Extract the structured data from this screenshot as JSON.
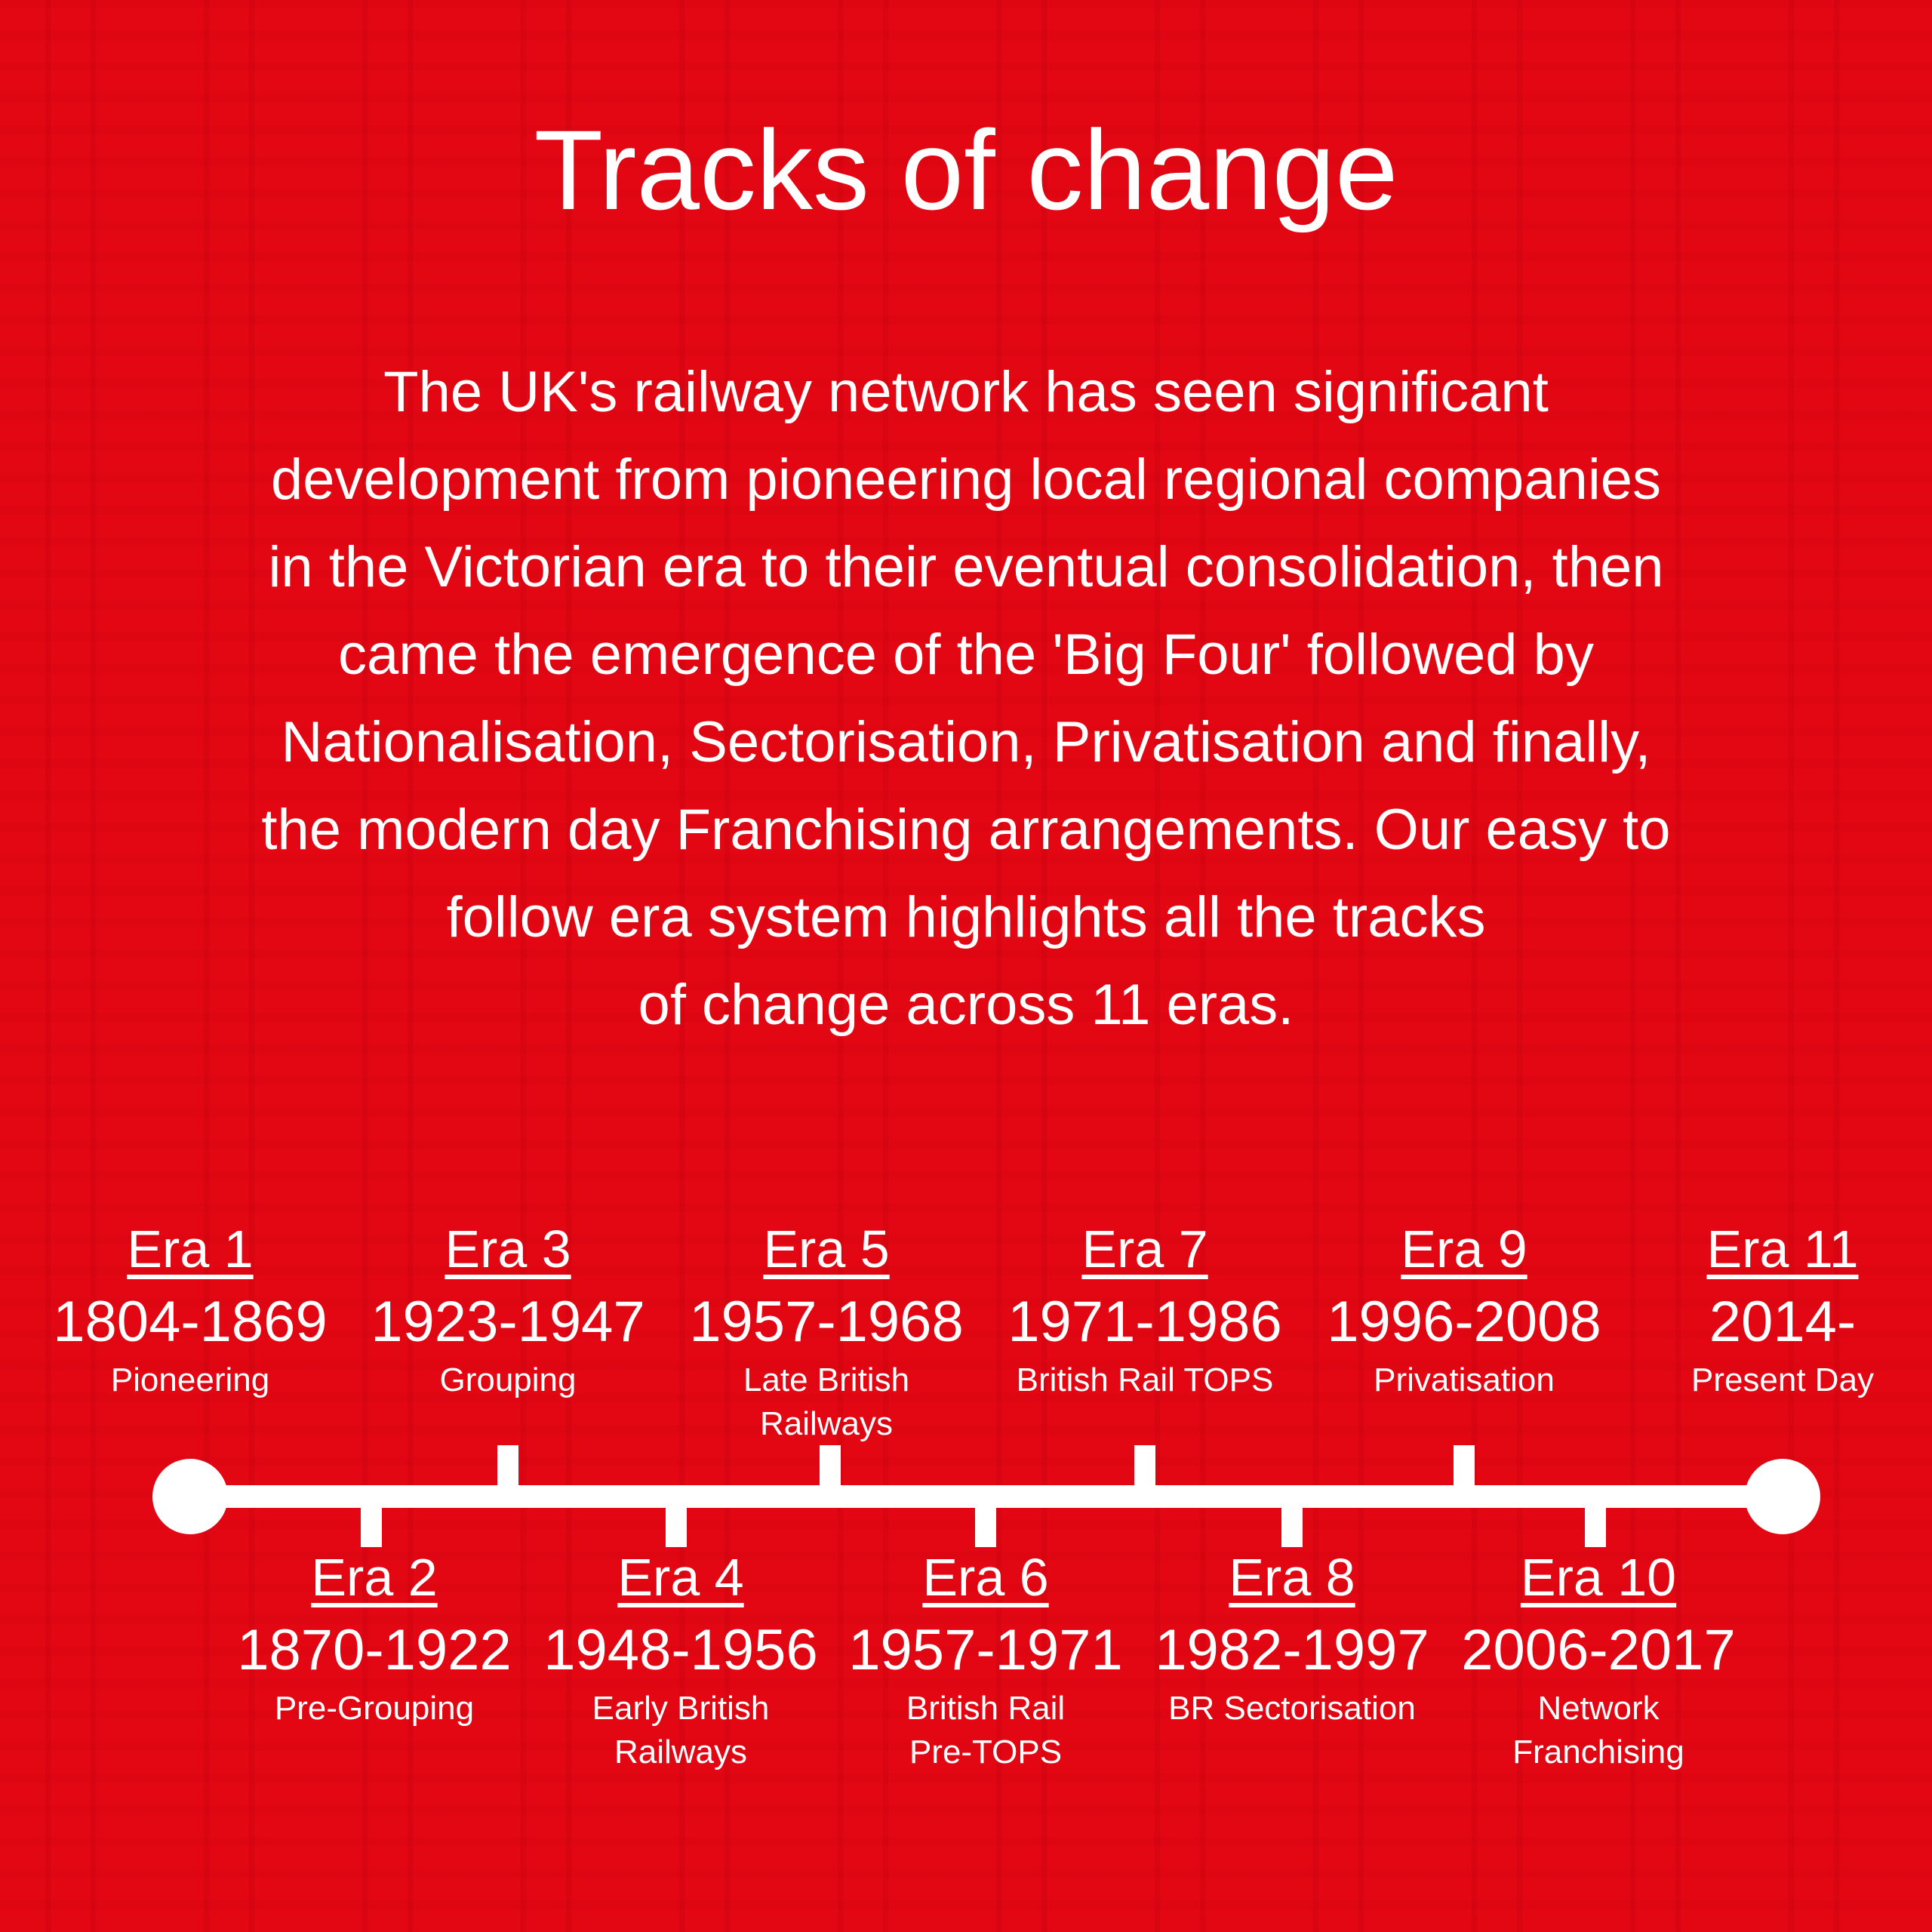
{
  "title": "Tracks of change",
  "intro_lines": [
    "The UK's railway network has seen significant",
    "development from pioneering local regional companies",
    "in the Victorian era to their eventual consolidation, then",
    "came the emergence of the 'Big Four' followed by",
    "Nationalisation, Sectorisation, Privatisation and finally,",
    "the modern day Franchising arrangements. Our easy to",
    "follow era system highlights all the tracks",
    "of change across 11 eras."
  ],
  "colors": {
    "background": "#e30613",
    "foreground": "#ffffff"
  },
  "eras": [
    {
      "label": "Era 1",
      "years": "1804-1869",
      "name": "Pioneering",
      "name2": ""
    },
    {
      "label": "Era 2",
      "years": "1870-1922",
      "name": "Pre-Grouping",
      "name2": ""
    },
    {
      "label": "Era 3",
      "years": "1923-1947",
      "name": "Grouping",
      "name2": ""
    },
    {
      "label": "Era 4",
      "years": "1948-1956",
      "name": "Early British",
      "name2": "Railways"
    },
    {
      "label": "Era 5",
      "years": "1957-1968",
      "name": "Late British",
      "name2": "Railways"
    },
    {
      "label": "Era 6",
      "years": "1957-1971",
      "name": "British Rail",
      "name2": "Pre-TOPS"
    },
    {
      "label": "Era 7",
      "years": "1971-1986",
      "name": "British Rail TOPS",
      "name2": ""
    },
    {
      "label": "Era 8",
      "years": "1982-1997",
      "name": "BR Sectorisation",
      "name2": ""
    },
    {
      "label": "Era 9",
      "years": "1996-2008",
      "name": "Privatisation",
      "name2": ""
    },
    {
      "label": "Era 10",
      "years": "2006-2017",
      "name": "Network",
      "name2": "Franchising"
    },
    {
      "label": "Era 11",
      "years": "2014-",
      "name": "Present Day",
      "name2": ""
    }
  ]
}
